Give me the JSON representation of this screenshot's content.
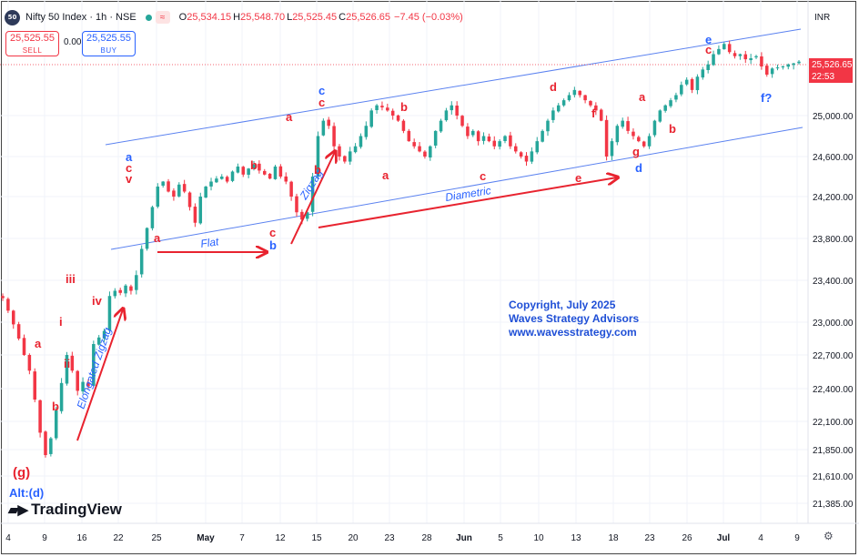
{
  "header": {
    "logo_text": "50",
    "title": "Nifty 50 Index · 1h · NSE",
    "wave_badge": "≈",
    "open_label": "O",
    "open": "25,534.15",
    "high_label": "H",
    "high": "25,548.70",
    "low_label": "L",
    "low": "25,525.45",
    "close_label": "C",
    "close": "25,526.65",
    "change": "−7.45 (−0.03%)"
  },
  "trade": {
    "sell_price": "25,525.55",
    "sell_label": "SELL",
    "spread": "0.00",
    "buy_price": "25,525.55",
    "buy_label": "BUY"
  },
  "currency": "INR",
  "last_price": {
    "value": "25,526.65",
    "countdown": "22:53"
  },
  "copyright": {
    "line1": "Copyright, July 2025",
    "line2": "Waves Strategy Advisors",
    "line3": "www.wavesstrategy.com"
  },
  "alt_label": "Alt:(d)",
  "brand": "TradingView",
  "colors": {
    "up": "#26a69a",
    "down": "#f23645",
    "channel": "#5b82f0",
    "wave_blue": "#2962ff",
    "wave_red": "#e8232f",
    "copyright": "#1f4fd6"
  },
  "chart_data": {
    "type": "candlestick",
    "x_ticks": [
      "4",
      "9",
      "16",
      "22",
      "25",
      "May",
      "7",
      "12",
      "15",
      "20",
      "23",
      "28",
      "Jun",
      "5",
      "10",
      "13",
      "18",
      "23",
      "26",
      "Jul",
      "4",
      "9"
    ],
    "y_ticks": [
      "25,000.00",
      "24,600.00",
      "24,200.00",
      "23,800.00",
      "23,400.00",
      "23,000.00",
      "22,700.00",
      "22,400.00",
      "22,100.00",
      "21,850.00",
      "21,610.00",
      "21,385.00"
    ],
    "last_price": 25526.65,
    "series": [
      {
        "values": [
          23230,
          23110,
          22980,
          22850,
          22700,
          22560,
          22300,
          22000,
          21800,
          21950,
          22200,
          22450,
          22700,
          22560,
          22380,
          22460,
          22420,
          22800,
          22860,
          22920,
          23250,
          23300,
          23280,
          23350,
          23300,
          23450,
          23700,
          23900,
          24100,
          24300,
          24350,
          24250,
          24200,
          24320,
          24250,
          24100,
          23950,
          24200,
          24300,
          24350,
          24380,
          24400,
          24350,
          24450,
          24500,
          24420,
          24480,
          24520,
          24460,
          24420,
          24380,
          24500,
          24400,
          24350,
          24200,
          24050,
          23980,
          24050,
          24400,
          24800,
          24950,
          24900,
          24700,
          24600,
          24550,
          24650,
          24700,
          24800,
          24900,
          25050,
          25100,
          25080,
          25050,
          25000,
          24950,
          24850,
          24750,
          24700,
          24650,
          24600,
          24700,
          24850,
          24950,
          25050,
          25100,
          25000,
          24900,
          24800,
          24850,
          24750,
          24800,
          24750,
          24700,
          24750,
          24800,
          24700,
          24650,
          24600,
          24550,
          24650,
          24750,
          24850,
          24950,
          25050,
          25100,
          25150,
          25200,
          25250,
          25200,
          25150,
          25100,
          25050,
          24950,
          24600,
          24750,
          24900,
          24950,
          24850,
          24800,
          24750,
          24700,
          24800,
          24950,
          25050,
          25100,
          25150,
          25200,
          25300,
          25350,
          25250,
          25380,
          25450,
          25500,
          25600,
          25650,
          25700,
          25620,
          25580,
          25600,
          25550,
          25560,
          25580,
          25480,
          25400,
          25460,
          25470,
          25480,
          25500,
          25510,
          25527
        ]
      }
    ],
    "channel_lines": [
      {
        "name": "upper-channel",
        "from": {
          "x_date": "Apr 19",
          "y": 24790
        },
        "to": {
          "x_date": "Jul 9",
          "y": 26000
        }
      },
      {
        "name": "lower-channel",
        "from": {
          "x_date": "Apr 19",
          "y": 23680
        },
        "to": {
          "x_date": "Jul 9",
          "y": 24920
        }
      }
    ],
    "annotations": [
      {
        "text": "(g)",
        "color": "red"
      },
      {
        "text": "a",
        "color": "red"
      },
      {
        "text": "b",
        "color": "red"
      },
      {
        "text": "i",
        "color": "red"
      },
      {
        "text": "ii",
        "color": "red"
      },
      {
        "text": "iii",
        "color": "red"
      },
      {
        "text": "iv",
        "color": "red"
      },
      {
        "text": "Elongated Zigzag",
        "color": "blue"
      },
      {
        "text": "a",
        "color": "blue"
      },
      {
        "text": "c",
        "color": "red"
      },
      {
        "text": "v",
        "color": "red"
      },
      {
        "text": "a",
        "color": "red"
      },
      {
        "text": "Flat",
        "color": "blue"
      },
      {
        "text": "b",
        "color": "red"
      },
      {
        "text": "c",
        "color": "red"
      },
      {
        "text": "b",
        "color": "blue"
      },
      {
        "text": "Zigzag",
        "color": "blue"
      },
      {
        "text": "a",
        "color": "red"
      },
      {
        "text": "c",
        "color": "blue"
      },
      {
        "text": "c",
        "color": "red"
      },
      {
        "text": "b",
        "color": "red"
      },
      {
        "text": "b",
        "color": "red"
      },
      {
        "text": "a",
        "color": "red"
      },
      {
        "text": "c",
        "color": "red"
      },
      {
        "text": "Diametric",
        "color": "blue"
      },
      {
        "text": "d",
        "color": "red"
      },
      {
        "text": "e",
        "color": "red"
      },
      {
        "text": "f",
        "color": "red"
      },
      {
        "text": "g",
        "color": "red"
      },
      {
        "text": "d",
        "color": "blue"
      },
      {
        "text": "a",
        "color": "red"
      },
      {
        "text": "b",
        "color": "red"
      },
      {
        "text": "e",
        "color": "blue"
      },
      {
        "text": "c",
        "color": "red"
      },
      {
        "text": "f?",
        "color": "blue"
      }
    ]
  }
}
